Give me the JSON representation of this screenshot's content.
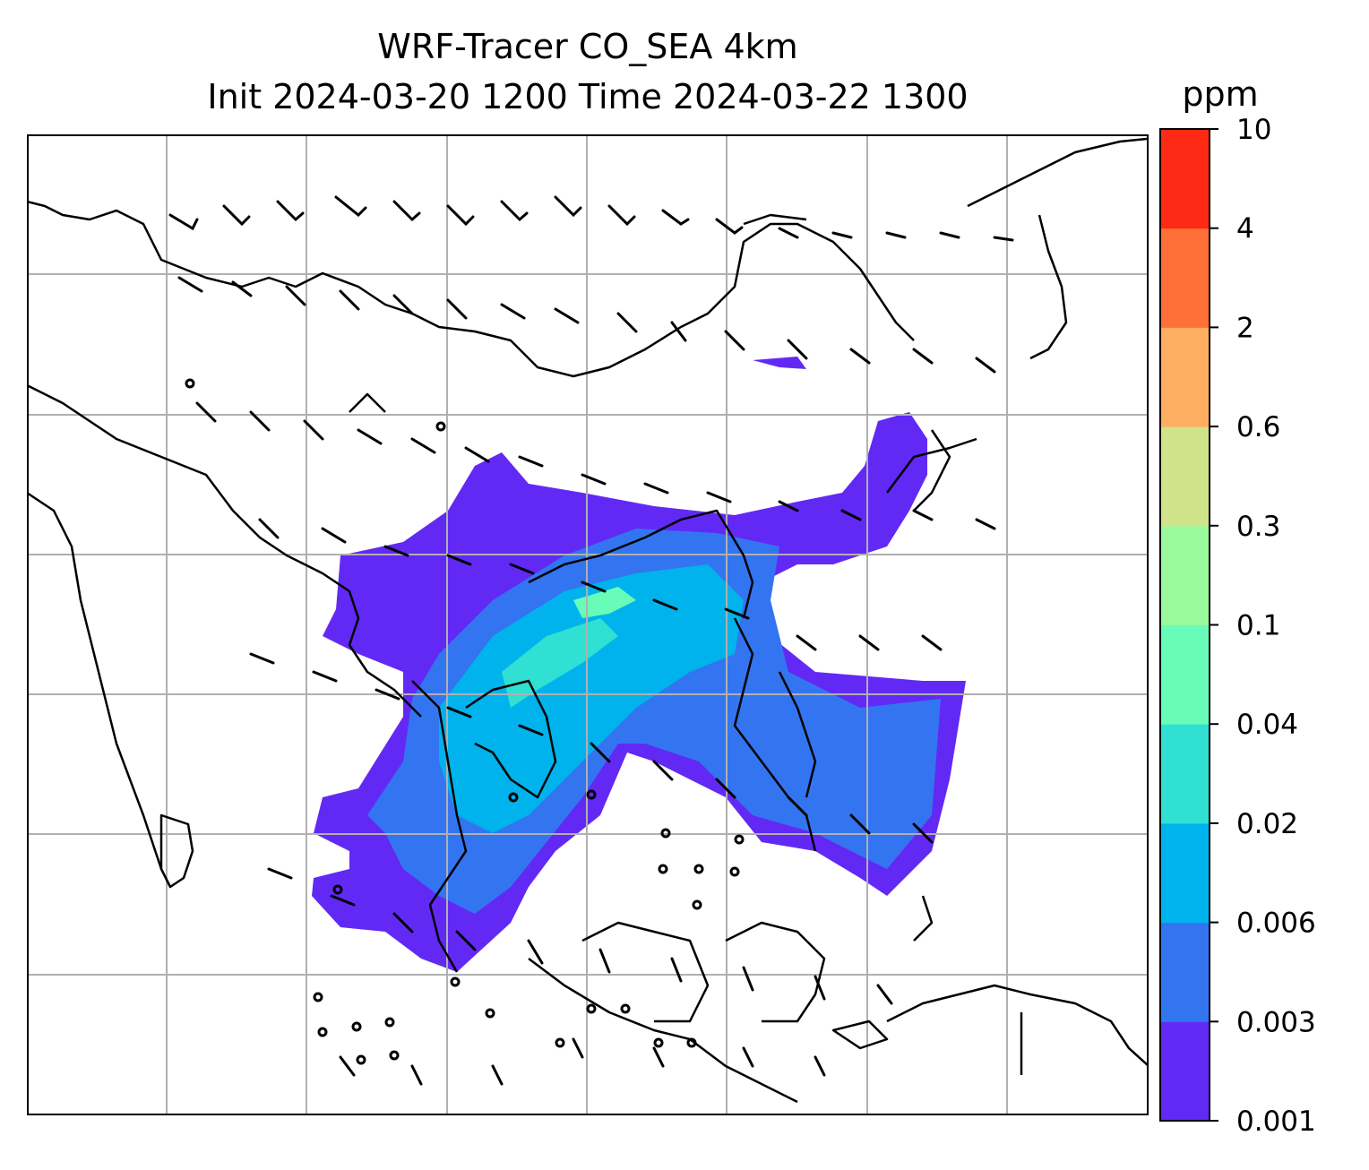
{
  "title": {
    "line1": "WRF-Tracer CO_SEA 4km",
    "line2": "Init 2024-03-20 1200 Time 2024-03-22 1300"
  },
  "colorbar": {
    "unit": "ppm",
    "ticks": [
      "0.001",
      "0.003",
      "0.006",
      "0.02",
      "0.04",
      "0.1",
      "0.3",
      "0.6",
      "2",
      "4",
      "10"
    ],
    "colors": [
      "#6229f5",
      "#3375f0",
      "#00b3ec",
      "#2fe0d3",
      "#68fcb9",
      "#99f99b",
      "#d1e38a",
      "#fdae61",
      "#ff7038",
      "#ff2a15"
    ]
  },
  "map": {
    "field": "CO tracer concentration",
    "overlay": "wind barbs",
    "gridlines": true
  }
}
